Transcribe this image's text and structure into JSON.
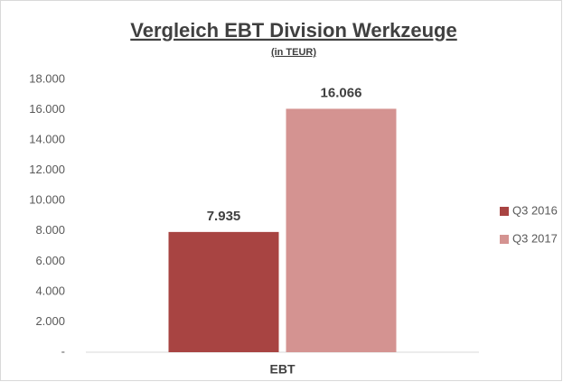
{
  "chart_data": {
    "type": "bar",
    "title": "Vergleich EBT Division Werkzeuge",
    "subtitle": "(in TEUR)",
    "categories": [
      "EBT"
    ],
    "series": [
      {
        "name": "Q3 2016",
        "color": "#a84442",
        "values": [
          7935
        ],
        "value_labels": [
          "7.935"
        ]
      },
      {
        "name": "Q3 2017",
        "color": "#d49391",
        "values": [
          16066
        ],
        "value_labels": [
          "16.066"
        ]
      }
    ],
    "ylim": [
      0,
      18000
    ],
    "yticks": [
      {
        "value": 0,
        "label": "-"
      },
      {
        "value": 2000,
        "label": "2.000"
      },
      {
        "value": 4000,
        "label": "4.000"
      },
      {
        "value": 6000,
        "label": "6.000"
      },
      {
        "value": 8000,
        "label": "8.000"
      },
      {
        "value": 10000,
        "label": "10.000"
      },
      {
        "value": 12000,
        "label": "12.000"
      },
      {
        "value": 14000,
        "label": "14.000"
      },
      {
        "value": 16000,
        "label": "16.000"
      },
      {
        "value": 18000,
        "label": "18.000"
      }
    ],
    "grid": false,
    "legend": "right"
  }
}
